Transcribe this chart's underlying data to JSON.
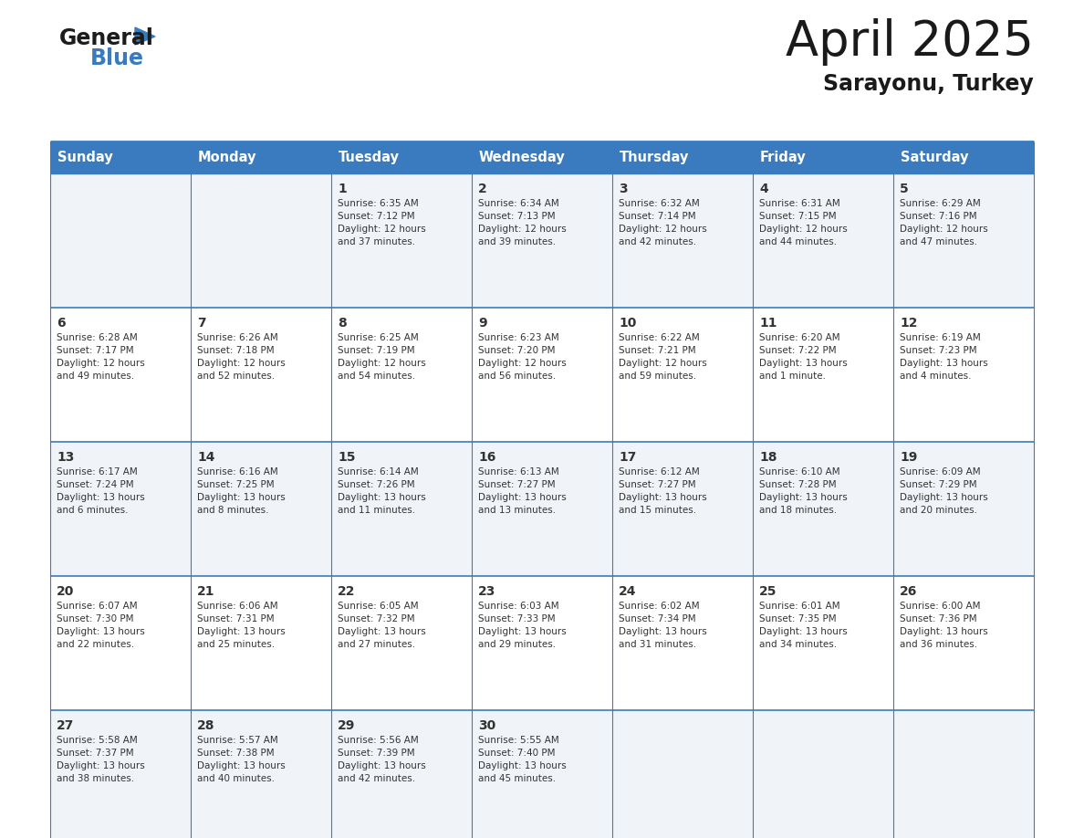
{
  "title": "April 2025",
  "subtitle": "Sarayonu, Turkey",
  "header_color": "#3a7bbf",
  "header_text_color": "#ffffff",
  "border_color": "#3a7bbf",
  "text_color": "#333333",
  "day_num_color": "#333333",
  "day_headers": [
    "Sunday",
    "Monday",
    "Tuesday",
    "Wednesday",
    "Thursday",
    "Friday",
    "Saturday"
  ],
  "weeks": [
    [
      {
        "day": "",
        "info": ""
      },
      {
        "day": "",
        "info": ""
      },
      {
        "day": "1",
        "info": "Sunrise: 6:35 AM\nSunset: 7:12 PM\nDaylight: 12 hours\nand 37 minutes."
      },
      {
        "day": "2",
        "info": "Sunrise: 6:34 AM\nSunset: 7:13 PM\nDaylight: 12 hours\nand 39 minutes."
      },
      {
        "day": "3",
        "info": "Sunrise: 6:32 AM\nSunset: 7:14 PM\nDaylight: 12 hours\nand 42 minutes."
      },
      {
        "day": "4",
        "info": "Sunrise: 6:31 AM\nSunset: 7:15 PM\nDaylight: 12 hours\nand 44 minutes."
      },
      {
        "day": "5",
        "info": "Sunrise: 6:29 AM\nSunset: 7:16 PM\nDaylight: 12 hours\nand 47 minutes."
      }
    ],
    [
      {
        "day": "6",
        "info": "Sunrise: 6:28 AM\nSunset: 7:17 PM\nDaylight: 12 hours\nand 49 minutes."
      },
      {
        "day": "7",
        "info": "Sunrise: 6:26 AM\nSunset: 7:18 PM\nDaylight: 12 hours\nand 52 minutes."
      },
      {
        "day": "8",
        "info": "Sunrise: 6:25 AM\nSunset: 7:19 PM\nDaylight: 12 hours\nand 54 minutes."
      },
      {
        "day": "9",
        "info": "Sunrise: 6:23 AM\nSunset: 7:20 PM\nDaylight: 12 hours\nand 56 minutes."
      },
      {
        "day": "10",
        "info": "Sunrise: 6:22 AM\nSunset: 7:21 PM\nDaylight: 12 hours\nand 59 minutes."
      },
      {
        "day": "11",
        "info": "Sunrise: 6:20 AM\nSunset: 7:22 PM\nDaylight: 13 hours\nand 1 minute."
      },
      {
        "day": "12",
        "info": "Sunrise: 6:19 AM\nSunset: 7:23 PM\nDaylight: 13 hours\nand 4 minutes."
      }
    ],
    [
      {
        "day": "13",
        "info": "Sunrise: 6:17 AM\nSunset: 7:24 PM\nDaylight: 13 hours\nand 6 minutes."
      },
      {
        "day": "14",
        "info": "Sunrise: 6:16 AM\nSunset: 7:25 PM\nDaylight: 13 hours\nand 8 minutes."
      },
      {
        "day": "15",
        "info": "Sunrise: 6:14 AM\nSunset: 7:26 PM\nDaylight: 13 hours\nand 11 minutes."
      },
      {
        "day": "16",
        "info": "Sunrise: 6:13 AM\nSunset: 7:27 PM\nDaylight: 13 hours\nand 13 minutes."
      },
      {
        "day": "17",
        "info": "Sunrise: 6:12 AM\nSunset: 7:27 PM\nDaylight: 13 hours\nand 15 minutes."
      },
      {
        "day": "18",
        "info": "Sunrise: 6:10 AM\nSunset: 7:28 PM\nDaylight: 13 hours\nand 18 minutes."
      },
      {
        "day": "19",
        "info": "Sunrise: 6:09 AM\nSunset: 7:29 PM\nDaylight: 13 hours\nand 20 minutes."
      }
    ],
    [
      {
        "day": "20",
        "info": "Sunrise: 6:07 AM\nSunset: 7:30 PM\nDaylight: 13 hours\nand 22 minutes."
      },
      {
        "day": "21",
        "info": "Sunrise: 6:06 AM\nSunset: 7:31 PM\nDaylight: 13 hours\nand 25 minutes."
      },
      {
        "day": "22",
        "info": "Sunrise: 6:05 AM\nSunset: 7:32 PM\nDaylight: 13 hours\nand 27 minutes."
      },
      {
        "day": "23",
        "info": "Sunrise: 6:03 AM\nSunset: 7:33 PM\nDaylight: 13 hours\nand 29 minutes."
      },
      {
        "day": "24",
        "info": "Sunrise: 6:02 AM\nSunset: 7:34 PM\nDaylight: 13 hours\nand 31 minutes."
      },
      {
        "day": "25",
        "info": "Sunrise: 6:01 AM\nSunset: 7:35 PM\nDaylight: 13 hours\nand 34 minutes."
      },
      {
        "day": "26",
        "info": "Sunrise: 6:00 AM\nSunset: 7:36 PM\nDaylight: 13 hours\nand 36 minutes."
      }
    ],
    [
      {
        "day": "27",
        "info": "Sunrise: 5:58 AM\nSunset: 7:37 PM\nDaylight: 13 hours\nand 38 minutes."
      },
      {
        "day": "28",
        "info": "Sunrise: 5:57 AM\nSunset: 7:38 PM\nDaylight: 13 hours\nand 40 minutes."
      },
      {
        "day": "29",
        "info": "Sunrise: 5:56 AM\nSunset: 7:39 PM\nDaylight: 13 hours\nand 42 minutes."
      },
      {
        "day": "30",
        "info": "Sunrise: 5:55 AM\nSunset: 7:40 PM\nDaylight: 13 hours\nand 45 minutes."
      },
      {
        "day": "",
        "info": ""
      },
      {
        "day": "",
        "info": ""
      },
      {
        "day": "",
        "info": ""
      }
    ]
  ],
  "fig_width": 11.88,
  "fig_height": 9.18,
  "dpi": 100
}
